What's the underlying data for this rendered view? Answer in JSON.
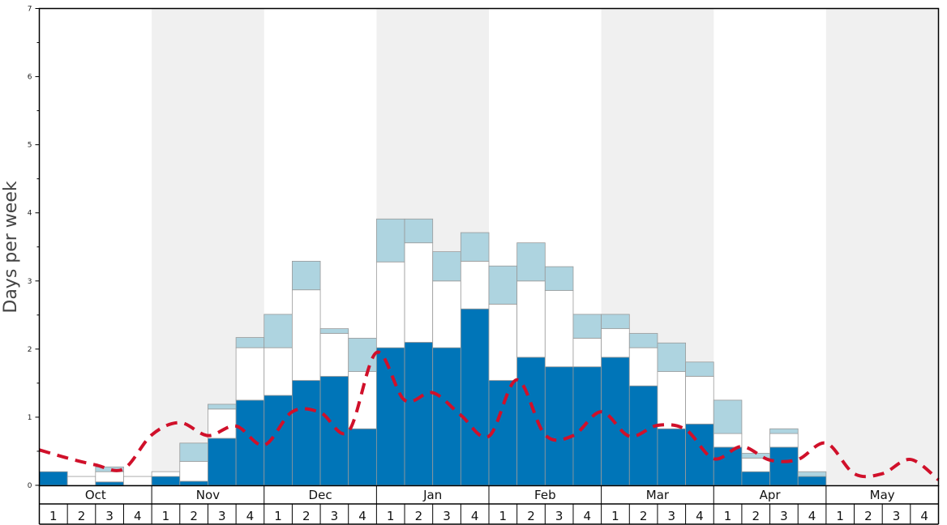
{
  "chart_data": {
    "type": "bar",
    "ylabel": "Days per week",
    "ylim": [
      0,
      7
    ],
    "yticks": [
      "0",
      "1",
      "2",
      "3",
      "4",
      "5",
      "6",
      "7"
    ],
    "months": [
      "Oct",
      "Nov",
      "Dec",
      "Jan",
      "Feb",
      "Mar",
      "Apr",
      "May"
    ],
    "weeks": [
      "1",
      "2",
      "3",
      "4"
    ],
    "month_shading": [
      "white",
      "gray",
      "white",
      "gray",
      "white",
      "gray",
      "white",
      "gray"
    ],
    "colors": {
      "dark_blue": "#0075b8",
      "white_segment": "#ffffff",
      "light_blue": "#aed4e0",
      "dashed_line": "#d0102a",
      "shade": "#f0f0f0"
    },
    "series": [
      {
        "key": "dark",
        "values": [
          0.2,
          0,
          0.05,
          0,
          0.13,
          0.06,
          0.69,
          1.25,
          1.32,
          1.54,
          1.6,
          0.83,
          2.02,
          2.1,
          2.02,
          2.59,
          1.54,
          1.88,
          1.74,
          1.74,
          1.88,
          1.46,
          0.83,
          0.9,
          0.56,
          0.2,
          0.56,
          0.13,
          0,
          0,
          0,
          0
        ]
      },
      {
        "key": "white",
        "values": [
          0,
          0.13,
          0.15,
          0.13,
          0.07,
          0.29,
          0.43,
          0.77,
          0.7,
          1.33,
          0.63,
          0.84,
          1.26,
          1.46,
          0.98,
          0.7,
          1.12,
          1.12,
          1.12,
          0.42,
          0.42,
          0.56,
          0.84,
          0.7,
          0.2,
          0.2,
          0.2,
          0,
          0,
          0,
          0,
          0
        ]
      },
      {
        "key": "light",
        "values": [
          0,
          0,
          0.07,
          0,
          0,
          0.27,
          0.07,
          0.15,
          0.49,
          0.42,
          0.07,
          0.49,
          0.63,
          0.35,
          0.43,
          0.42,
          0.56,
          0.56,
          0.35,
          0.35,
          0.21,
          0.21,
          0.42,
          0.21,
          0.49,
          0.07,
          0.07,
          0.07,
          0,
          0,
          0,
          0
        ]
      }
    ],
    "line_values": [
      0.52,
      0.4,
      0.3,
      0.24,
      0.74,
      0.92,
      0.73,
      0.87,
      0.59,
      1.08,
      1.07,
      0.79,
      1.95,
      1.25,
      1.36,
      1.03,
      0.72,
      1.55,
      0.74,
      0.73,
      1.08,
      0.72,
      0.88,
      0.82,
      0.39,
      0.57,
      0.37,
      0.38,
      0.62,
      0.17,
      0.17,
      0.38,
      0.08
    ]
  }
}
